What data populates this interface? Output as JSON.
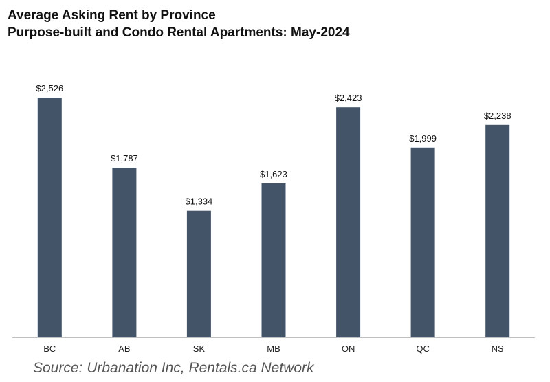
{
  "chart_data": {
    "type": "bar",
    "title": "Average Asking Rent by Province",
    "subtitle": "Purpose-built and Condo Rental Apartments: May-2024",
    "categories": [
      "BC",
      "AB",
      "SK",
      "MB",
      "ON",
      "QC",
      "NS"
    ],
    "values": [
      2526,
      1787,
      1334,
      1623,
      2423,
      1999,
      2238
    ],
    "value_labels": [
      "$2,526",
      "$1,787",
      "$1,334",
      "$1,623",
      "$2,423",
      "$1,999",
      "$2,238"
    ],
    "xlabel": "",
    "ylabel": "",
    "ylim": [
      0,
      2526
    ],
    "grid": false,
    "legend": "none",
    "colors": {
      "bar": "#435368",
      "axis": "#bfbfbf"
    }
  },
  "source": "Source: Urbanation Inc, Rentals.ca Network"
}
